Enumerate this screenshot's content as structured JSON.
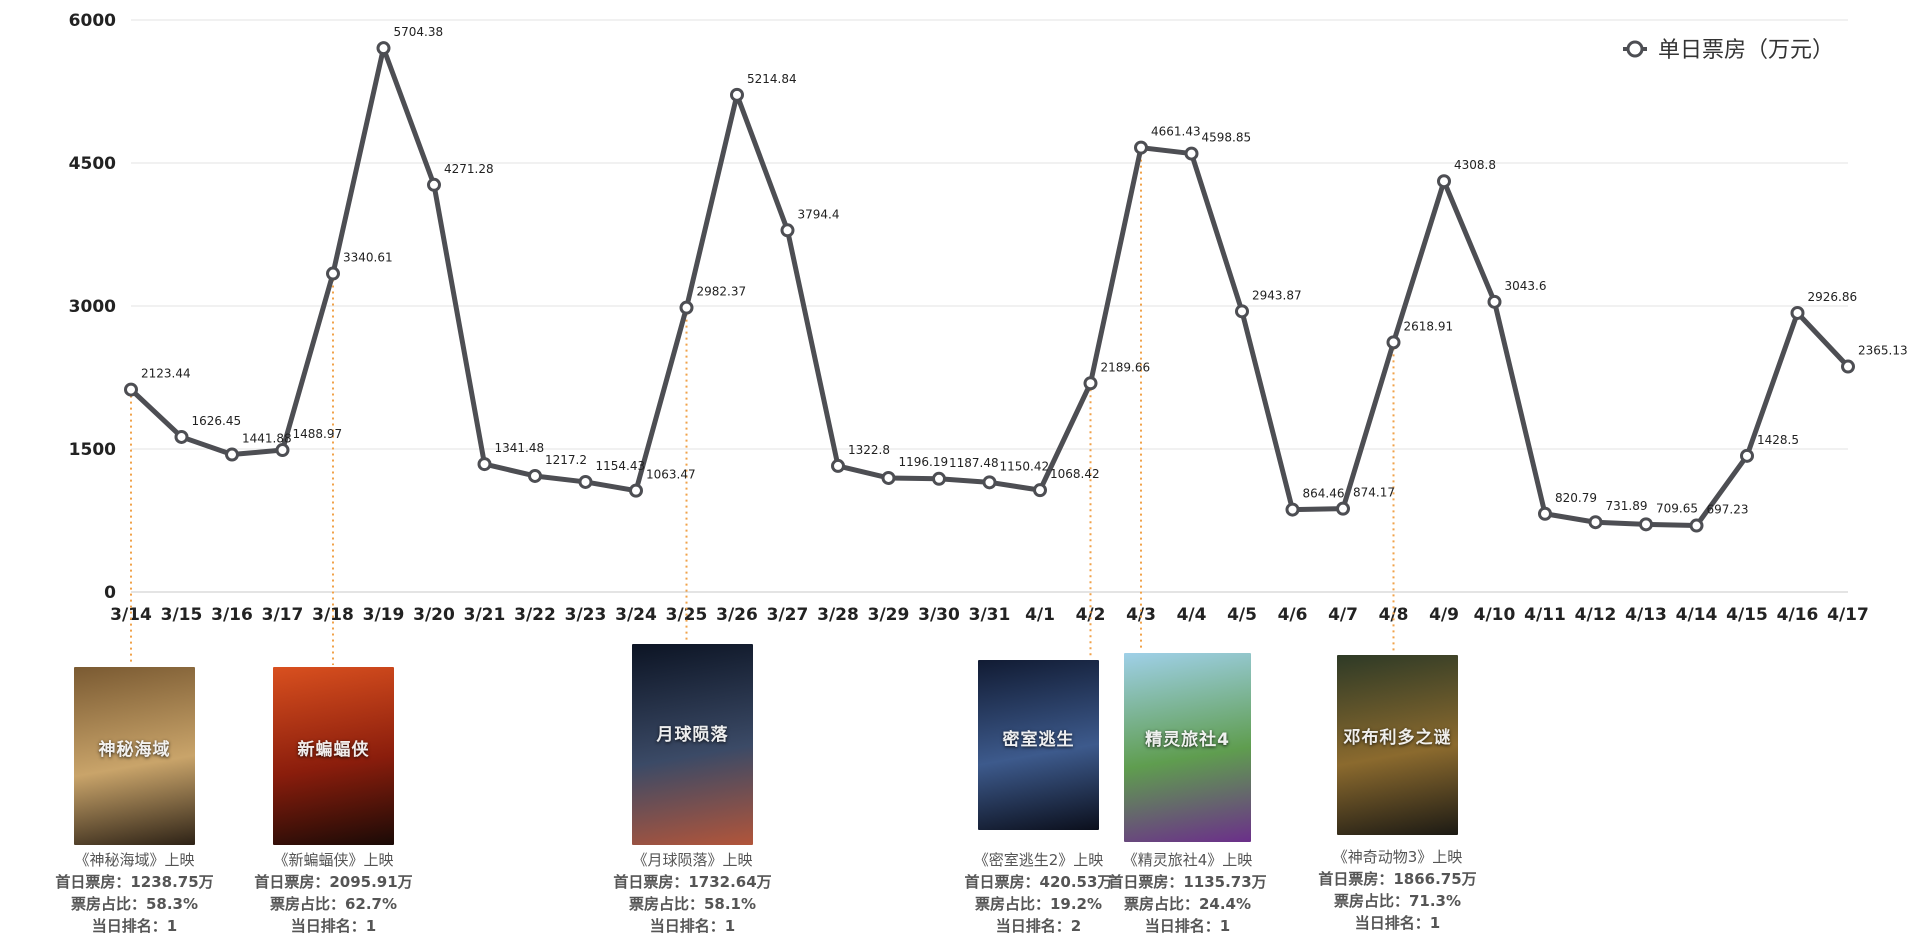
{
  "chart_data": {
    "type": "line",
    "legend": {
      "label": "单日票房（万元）",
      "position": "top-right"
    },
    "y_ticks": [
      "0",
      "1500",
      "3000",
      "4500",
      "6000"
    ],
    "ylim": [
      0,
      6000
    ],
    "grid": true,
    "categories": [
      "3/14",
      "3/15",
      "3/16",
      "3/17",
      "3/18",
      "3/19",
      "3/20",
      "3/21",
      "3/22",
      "3/23",
      "3/24",
      "3/25",
      "3/26",
      "3/27",
      "3/28",
      "3/29",
      "3/30",
      "3/31",
      "4/1",
      "4/2",
      "4/3",
      "4/4",
      "4/5",
      "4/6",
      "4/7",
      "4/8",
      "4/9",
      "4/10",
      "4/11",
      "4/12",
      "4/13",
      "4/14",
      "4/15",
      "4/16",
      "4/17"
    ],
    "values": [
      2123.44,
      1626.45,
      1441.88,
      1488.97,
      3340.61,
      5704.38,
      4271.28,
      1341.48,
      1217.2,
      1154.43,
      1063.47,
      2982.37,
      5214.84,
      3794.4,
      1322.8,
      1196.19,
      1187.48,
      1150.42,
      1068.42,
      2189.66,
      4661.43,
      4598.85,
      2943.87,
      864.46,
      874.17,
      2618.91,
      4308.8,
      3043.6,
      820.79,
      731.89,
      709.65,
      697.23,
      1428.5,
      2926.86,
      2365.13
    ],
    "value_labels": [
      "2123.44",
      "1626.45",
      "1441.88",
      "1488.97",
      "3340.61",
      "5704.38",
      "4271.28",
      "1341.48",
      "1217.2",
      "1154.43",
      "1063.47",
      "2982.37",
      "5214.84",
      "3794.4",
      "1322.8",
      "1196.19",
      "1187.48",
      "1150.42",
      "1068.42",
      "2189.66",
      "4661.43",
      "4598.85",
      "2943.87",
      "864.46",
      "874.17",
      "2618.91",
      "4308.8",
      "3043.6",
      "820.79",
      "731.89",
      "709.65",
      "697.23",
      "1428.5",
      "2926.86",
      "2365.13"
    ],
    "colors": {
      "line": "#4d4e53",
      "marker_fill": "#ffffff",
      "grid": "#e3e3e3",
      "marker_line": "#f0a24a"
    },
    "annotations": [
      {
        "date": "3/14",
        "title": "《神秘海域》上映",
        "first_day": "首日票房：1238.75万",
        "share": "票房占比：58.3%",
        "rank": "当日排名：1",
        "poster_text": "神秘海域",
        "poster_colors": [
          "#7a5a32",
          "#c9a46a",
          "#2d2216"
        ]
      },
      {
        "date": "3/18",
        "title": "《新蝙蝠侠》上映",
        "first_day": "首日票房：2095.91万",
        "share": "票房占比：62.7%",
        "rank": "当日排名：1",
        "poster_text": "新蝙蝠侠",
        "poster_colors": [
          "#d9501f",
          "#8a1d0c",
          "#1a0a06"
        ]
      },
      {
        "date": "3/25",
        "title": "《月球陨落》上映",
        "first_day": "首日票房：1732.64万",
        "share": "票房占比：58.1%",
        "rank": "当日排名：1",
        "poster_text": "月球陨落",
        "poster_colors": [
          "#0c1424",
          "#3b4a66",
          "#b2553a"
        ]
      },
      {
        "date": "4/2",
        "title": "《密室逃生2》上映",
        "first_day": "首日票房：420.53万",
        "share": "票房占比：19.2%",
        "rank": "当日排名：2",
        "poster_text": "密室逃生",
        "poster_colors": [
          "#111b33",
          "#3d5a8c",
          "#0b0f1c"
        ]
      },
      {
        "date": "4/3",
        "title": "《精灵旅社4》上映",
        "first_day": "首日票房：1135.73万",
        "share": "票房占比：24.4%",
        "rank": "当日排名：1",
        "poster_text": "精灵旅社4",
        "poster_colors": [
          "#9fd0e8",
          "#5f9d4f",
          "#6b2f8a"
        ]
      },
      {
        "date": "4/8",
        "title": "《神奇动物3》上映",
        "first_day": "首日票房：1866.75万",
        "share": "票房占比：71.3%",
        "rank": "当日排名：1",
        "poster_text": "邓布利多之谜",
        "poster_colors": [
          "#2e3a26",
          "#8b6a2e",
          "#1c1a14"
        ]
      }
    ]
  }
}
